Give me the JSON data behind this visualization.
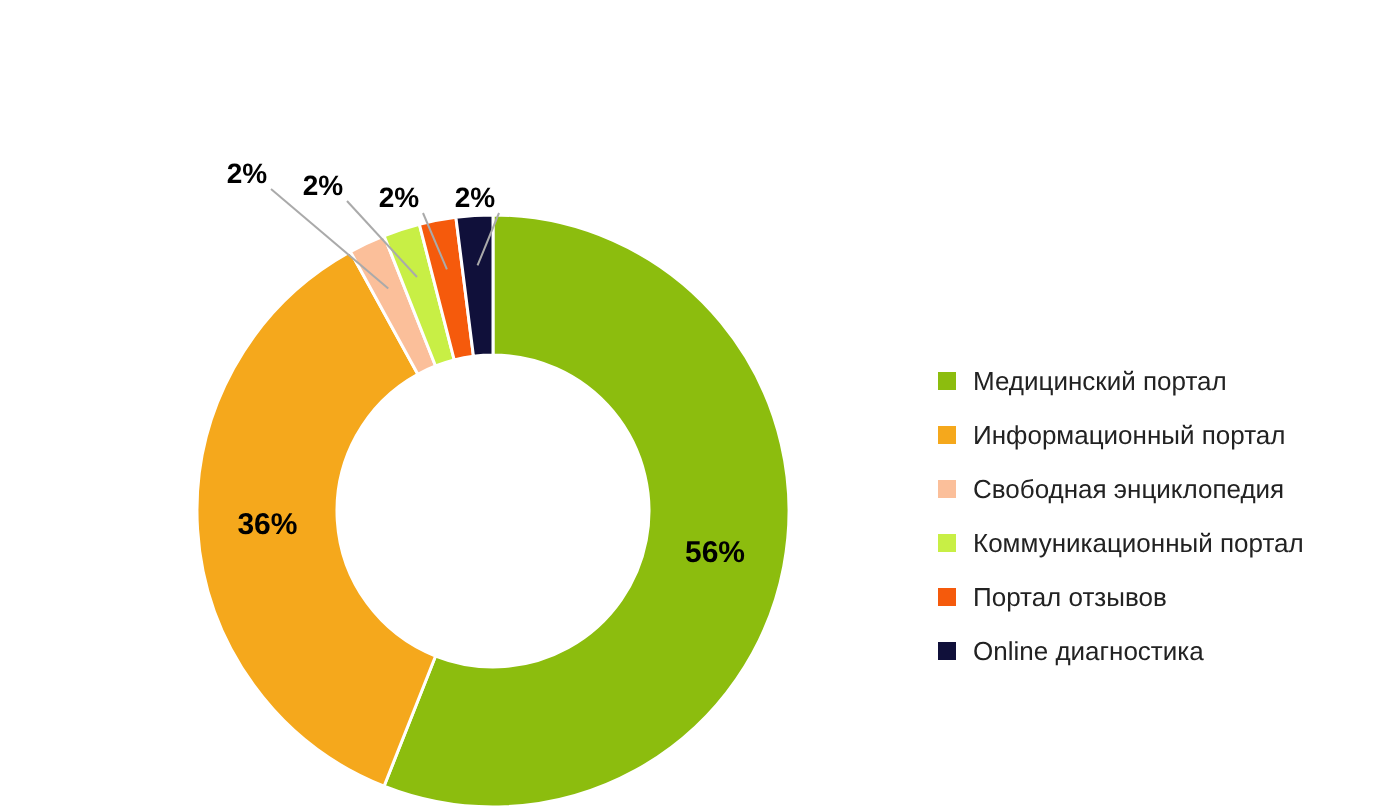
{
  "chart_data": {
    "type": "donut",
    "categories": [
      "Медицинский портал",
      "Информационный портал",
      "Свободная энциклопедия",
      "Коммуникационный портал",
      "Портал отзывов",
      "Online диагностика"
    ],
    "values": [
      56,
      36,
      2,
      2,
      2,
      2
    ],
    "colors": [
      "#8cbd0e",
      "#f5a81c",
      "#fbbf9a",
      "#c8ef45",
      "#f55a0c",
      "#10103a"
    ],
    "value_labels": [
      "56%",
      "36%",
      "2%",
      "2%",
      "2%",
      "2%"
    ],
    "legend": "right"
  }
}
